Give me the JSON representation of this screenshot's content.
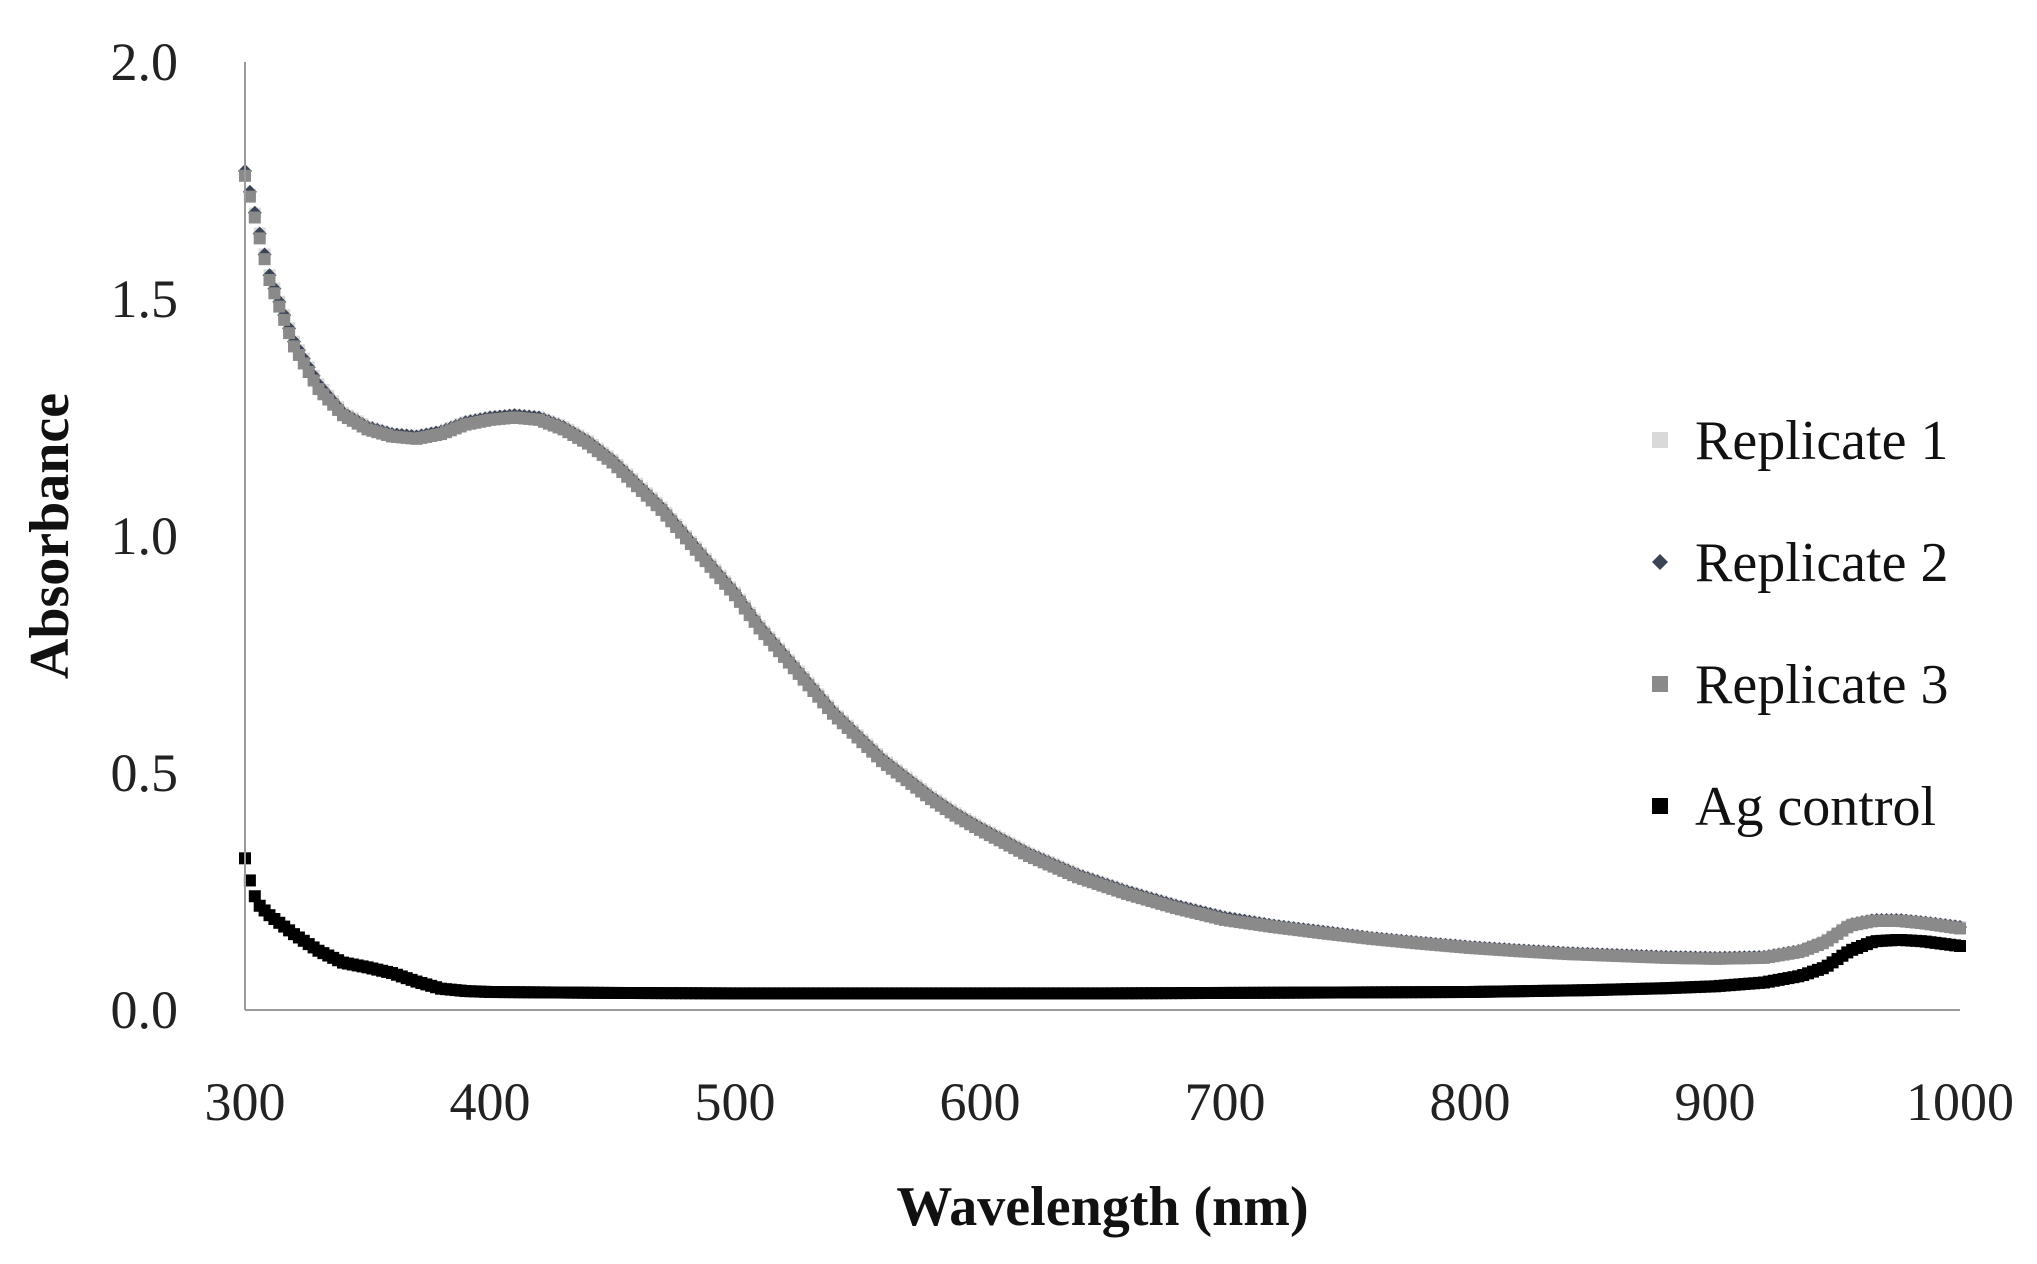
{
  "chart_data": {
    "type": "scatter",
    "title": "",
    "xlabel": "Wavelength (nm)",
    "ylabel": "Absorbance",
    "xlim": [
      300,
      1000
    ],
    "ylim": [
      0.0,
      2.0
    ],
    "x_ticks": [
      "300",
      "400",
      "500",
      "600",
      "700",
      "800",
      "900",
      "1000"
    ],
    "x_tick_values": [
      300,
      400,
      500,
      600,
      700,
      800,
      900,
      1000
    ],
    "y_ticks": [
      "0.0",
      "0.5",
      "1.0",
      "1.5",
      "2.0"
    ],
    "y_tick_values": [
      0.0,
      0.5,
      1.0,
      1.5,
      2.0
    ],
    "grid": false,
    "legend_position": "right",
    "x_step": 2,
    "series": [
      {
        "name": "Replicate 1",
        "color": "#d9d9d9",
        "marker": "square",
        "anchors": [
          [
            300,
            1.76
          ],
          [
            305,
            1.66
          ],
          [
            310,
            1.55
          ],
          [
            320,
            1.41
          ],
          [
            330,
            1.32
          ],
          [
            340,
            1.26
          ],
          [
            350,
            1.23
          ],
          [
            360,
            1.215
          ],
          [
            370,
            1.21
          ],
          [
            380,
            1.22
          ],
          [
            390,
            1.24
          ],
          [
            400,
            1.25
          ],
          [
            410,
            1.255
          ],
          [
            420,
            1.25
          ],
          [
            430,
            1.23
          ],
          [
            440,
            1.2
          ],
          [
            450,
            1.16
          ],
          [
            460,
            1.11
          ],
          [
            470,
            1.06
          ],
          [
            480,
            1.0
          ],
          [
            490,
            0.94
          ],
          [
            500,
            0.88
          ],
          [
            510,
            0.81
          ],
          [
            520,
            0.75
          ],
          [
            530,
            0.69
          ],
          [
            540,
            0.63
          ],
          [
            550,
            0.58
          ],
          [
            560,
            0.53
          ],
          [
            570,
            0.49
          ],
          [
            580,
            0.45
          ],
          [
            590,
            0.415
          ],
          [
            600,
            0.385
          ],
          [
            620,
            0.33
          ],
          [
            640,
            0.285
          ],
          [
            660,
            0.25
          ],
          [
            680,
            0.22
          ],
          [
            700,
            0.195
          ],
          [
            720,
            0.178
          ],
          [
            740,
            0.165
          ],
          [
            760,
            0.152
          ],
          [
            780,
            0.142
          ],
          [
            800,
            0.133
          ],
          [
            820,
            0.126
          ],
          [
            840,
            0.12
          ],
          [
            860,
            0.116
          ],
          [
            880,
            0.112
          ],
          [
            900,
            0.11
          ],
          [
            920,
            0.112
          ],
          [
            935,
            0.125
          ],
          [
            945,
            0.145
          ],
          [
            955,
            0.18
          ],
          [
            965,
            0.19
          ],
          [
            975,
            0.19
          ],
          [
            985,
            0.185
          ],
          [
            1000,
            0.175
          ]
        ]
      },
      {
        "name": "Replicate 2",
        "color": "#3b4456",
        "marker": "diamond",
        "anchors": [
          [
            300,
            1.77
          ],
          [
            305,
            1.66
          ],
          [
            310,
            1.55
          ],
          [
            320,
            1.41
          ],
          [
            330,
            1.32
          ],
          [
            340,
            1.26
          ],
          [
            350,
            1.23
          ],
          [
            360,
            1.215
          ],
          [
            370,
            1.21
          ],
          [
            380,
            1.22
          ],
          [
            390,
            1.24
          ],
          [
            400,
            1.25
          ],
          [
            410,
            1.255
          ],
          [
            420,
            1.25
          ],
          [
            430,
            1.23
          ],
          [
            440,
            1.2
          ],
          [
            450,
            1.16
          ],
          [
            460,
            1.11
          ],
          [
            470,
            1.06
          ],
          [
            480,
            1.0
          ],
          [
            490,
            0.94
          ],
          [
            500,
            0.88
          ],
          [
            510,
            0.81
          ],
          [
            520,
            0.75
          ],
          [
            530,
            0.69
          ],
          [
            540,
            0.63
          ],
          [
            550,
            0.58
          ],
          [
            560,
            0.53
          ],
          [
            570,
            0.49
          ],
          [
            580,
            0.45
          ],
          [
            590,
            0.415
          ],
          [
            600,
            0.385
          ],
          [
            620,
            0.33
          ],
          [
            640,
            0.285
          ],
          [
            660,
            0.25
          ],
          [
            680,
            0.22
          ],
          [
            700,
            0.195
          ],
          [
            720,
            0.178
          ],
          [
            740,
            0.165
          ],
          [
            760,
            0.152
          ],
          [
            780,
            0.142
          ],
          [
            800,
            0.133
          ],
          [
            820,
            0.126
          ],
          [
            840,
            0.12
          ],
          [
            860,
            0.116
          ],
          [
            880,
            0.112
          ],
          [
            900,
            0.11
          ],
          [
            920,
            0.112
          ],
          [
            935,
            0.125
          ],
          [
            945,
            0.145
          ],
          [
            955,
            0.18
          ],
          [
            965,
            0.19
          ],
          [
            975,
            0.19
          ],
          [
            985,
            0.185
          ],
          [
            1000,
            0.175
          ]
        ]
      },
      {
        "name": "Replicate 3",
        "color": "#8a8a8a",
        "marker": "square",
        "anchors": [
          [
            300,
            1.76
          ],
          [
            305,
            1.65
          ],
          [
            310,
            1.54
          ],
          [
            320,
            1.4
          ],
          [
            330,
            1.31
          ],
          [
            340,
            1.255
          ],
          [
            350,
            1.225
          ],
          [
            360,
            1.21
          ],
          [
            370,
            1.205
          ],
          [
            380,
            1.215
          ],
          [
            390,
            1.235
          ],
          [
            400,
            1.245
          ],
          [
            410,
            1.25
          ],
          [
            420,
            1.245
          ],
          [
            430,
            1.225
          ],
          [
            440,
            1.195
          ],
          [
            450,
            1.155
          ],
          [
            460,
            1.105
          ],
          [
            470,
            1.055
          ],
          [
            480,
            0.995
          ],
          [
            490,
            0.935
          ],
          [
            500,
            0.875
          ],
          [
            510,
            0.805
          ],
          [
            520,
            0.745
          ],
          [
            530,
            0.685
          ],
          [
            540,
            0.625
          ],
          [
            550,
            0.575
          ],
          [
            560,
            0.525
          ],
          [
            570,
            0.485
          ],
          [
            580,
            0.445
          ],
          [
            590,
            0.41
          ],
          [
            600,
            0.38
          ],
          [
            620,
            0.325
          ],
          [
            640,
            0.28
          ],
          [
            660,
            0.245
          ],
          [
            680,
            0.215
          ],
          [
            700,
            0.19
          ],
          [
            720,
            0.175
          ],
          [
            740,
            0.162
          ],
          [
            760,
            0.15
          ],
          [
            780,
            0.14
          ],
          [
            800,
            0.131
          ],
          [
            820,
            0.124
          ],
          [
            840,
            0.118
          ],
          [
            860,
            0.114
          ],
          [
            880,
            0.11
          ],
          [
            900,
            0.108
          ],
          [
            920,
            0.11
          ],
          [
            935,
            0.123
          ],
          [
            945,
            0.143
          ],
          [
            955,
            0.178
          ],
          [
            965,
            0.188
          ],
          [
            975,
            0.188
          ],
          [
            985,
            0.183
          ],
          [
            1000,
            0.172
          ]
        ]
      },
      {
        "name": "Ag control",
        "color": "#000000",
        "marker": "square",
        "anchors": [
          [
            300,
            0.32
          ],
          [
            303,
            0.25
          ],
          [
            306,
            0.22
          ],
          [
            310,
            0.2
          ],
          [
            320,
            0.16
          ],
          [
            330,
            0.125
          ],
          [
            340,
            0.1
          ],
          [
            350,
            0.09
          ],
          [
            360,
            0.078
          ],
          [
            370,
            0.06
          ],
          [
            380,
            0.045
          ],
          [
            390,
            0.04
          ],
          [
            400,
            0.038
          ],
          [
            450,
            0.036
          ],
          [
            500,
            0.035
          ],
          [
            600,
            0.035
          ],
          [
            650,
            0.035
          ],
          [
            700,
            0.036
          ],
          [
            750,
            0.037
          ],
          [
            800,
            0.038
          ],
          [
            850,
            0.042
          ],
          [
            880,
            0.046
          ],
          [
            900,
            0.05
          ],
          [
            920,
            0.058
          ],
          [
            935,
            0.072
          ],
          [
            945,
            0.09
          ],
          [
            955,
            0.125
          ],
          [
            965,
            0.145
          ],
          [
            975,
            0.148
          ],
          [
            985,
            0.145
          ],
          [
            1000,
            0.135
          ]
        ]
      }
    ]
  }
}
